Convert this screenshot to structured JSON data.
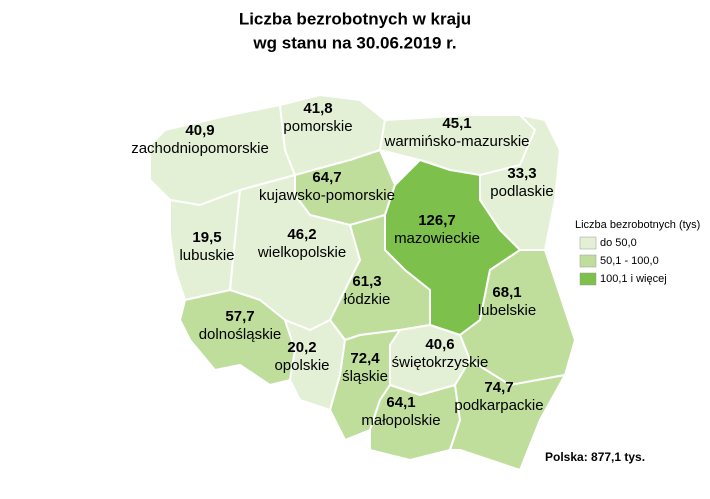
{
  "title": [
    "Liczba bezrobotnych w kraju",
    "wg stanu na 30.06.2019 r."
  ],
  "regions": [
    {
      "name": "zachodniopomorskie",
      "value": "40,9",
      "color": "#e3f0d6"
    },
    {
      "name": "pomorskie",
      "value": "41,8",
      "color": "#e3f0d6"
    },
    {
      "name": "warmińsko-mazurskie",
      "value": "45,1",
      "color": "#e3f0d6"
    },
    {
      "name": "podlaskie",
      "value": "33,3",
      "color": "#e3f0d6"
    },
    {
      "name": "kujawsko-pomorskie",
      "value": "64,7",
      "color": "#bfde9c"
    },
    {
      "name": "mazowieckie",
      "value": "126,7",
      "color": "#7dc04b"
    },
    {
      "name": "lubuskie",
      "value": "19,5",
      "color": "#e3f0d6"
    },
    {
      "name": "wielkopolskie",
      "value": "46,2",
      "color": "#e3f0d6"
    },
    {
      "name": "łódzkie",
      "value": "61,3",
      "color": "#bfde9c"
    },
    {
      "name": "lubelskie",
      "value": "68,1",
      "color": "#bfde9c"
    },
    {
      "name": "dolnośląskie",
      "value": "57,7",
      "color": "#bfde9c"
    },
    {
      "name": "opolskie",
      "value": "20,2",
      "color": "#e3f0d6"
    },
    {
      "name": "śląskie",
      "value": "72,4",
      "color": "#bfde9c"
    },
    {
      "name": "świętokrzyskie",
      "value": "40,6",
      "color": "#e3f0d6"
    },
    {
      "name": "małopolskie",
      "value": "64,1",
      "color": "#bfde9c"
    },
    {
      "name": "podkarpackie",
      "value": "74,7",
      "color": "#bfde9c"
    }
  ],
  "legend": {
    "title": "Liczba bezrobotnych (tys)",
    "items": [
      {
        "label": "do 50,0",
        "color": "#e3f0d6"
      },
      {
        "label": "50,1 - 100,0",
        "color": "#bfde9c"
      },
      {
        "label": "100,1 i więcej",
        "color": "#7dc04b"
      }
    ]
  },
  "footer": "Polska: 877,1 tys."
}
